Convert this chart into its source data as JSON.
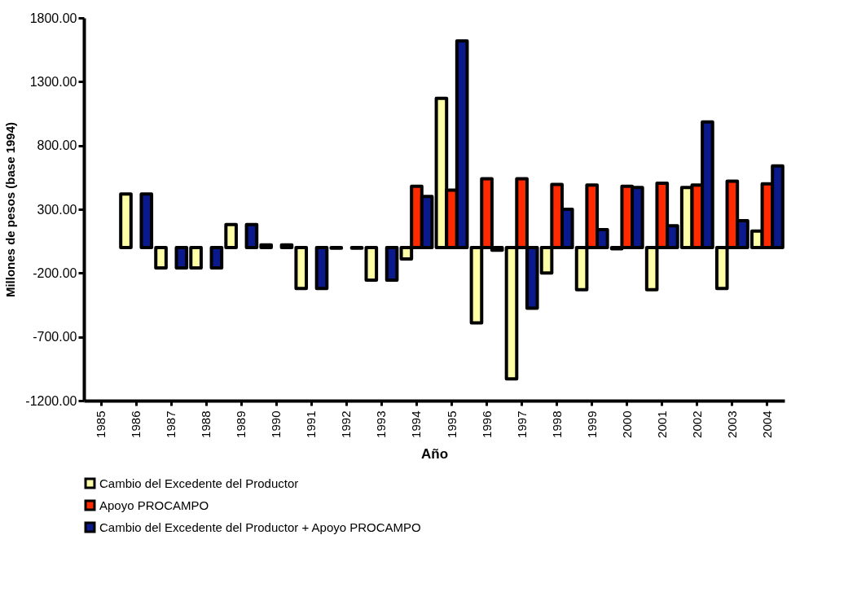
{
  "chart_data": {
    "type": "bar",
    "xlabel": "Año",
    "ylabel": "Millones de pesos (base 1994)",
    "categories": [
      "1985",
      "1986",
      "1987",
      "1988",
      "1989",
      "1990",
      "1991",
      "1992",
      "1993",
      "1994",
      "1995",
      "1996",
      "1997",
      "1998",
      "1999",
      "2000",
      "2001",
      "2002",
      "2003",
      "2004"
    ],
    "series": [
      {
        "name": "Cambio del Excedente del Productor",
        "color": "#ffffa8",
        "values": [
          null,
          420,
          -160,
          -160,
          180,
          20,
          -320,
          -5,
          -255,
          -90,
          1170,
          -590,
          -1030,
          -200,
          -330,
          -10,
          -330,
          470,
          -320,
          130
        ]
      },
      {
        "name": "Apoyo PROCAMPO",
        "color": "#ff2a00",
        "values": [
          null,
          null,
          null,
          null,
          null,
          null,
          null,
          null,
          null,
          480,
          450,
          540,
          540,
          495,
          490,
          480,
          505,
          490,
          520,
          500
        ]
      },
      {
        "name": "Cambio del Excedente del Productor + Apoyo PROCAMPO",
        "color": "#0a1a8c",
        "values": [
          null,
          420,
          -160,
          -160,
          180,
          20,
          -320,
          -5,
          -255,
          400,
          1620,
          -20,
          -475,
          300,
          140,
          470,
          170,
          985,
          210,
          640
        ]
      }
    ],
    "ylim": [
      -1200,
      1800
    ],
    "yticks": [
      {
        "value": -1200,
        "label": "-1200.00"
      },
      {
        "value": -700,
        "label": "-700.00"
      },
      {
        "value": -200,
        "label": "-200.00"
      },
      {
        "value": 300,
        "label": "300.00"
      },
      {
        "value": 800,
        "label": "800.00"
      },
      {
        "value": 1300,
        "label": "1300.00"
      },
      {
        "value": 1800,
        "label": "1800.00"
      }
    ],
    "grid": false,
    "legend": "bottom"
  }
}
